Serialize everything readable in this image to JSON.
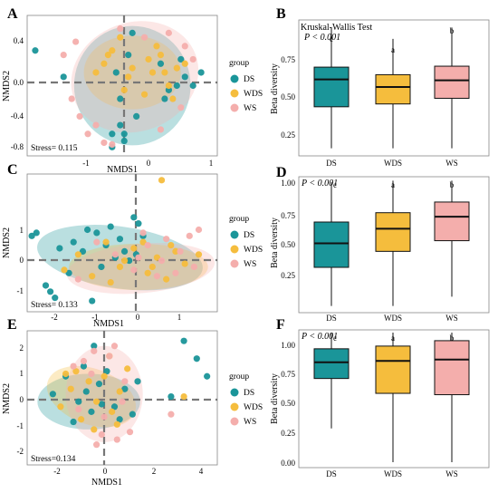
{
  "colors": {
    "DS": "#1a9599",
    "WDS": "#f5bd3d",
    "WS": "#f4aeac"
  },
  "legend": {
    "title": "group",
    "items": [
      "DS",
      "WDS",
      "WS"
    ]
  },
  "chart_data": [
    {
      "panel": "A",
      "type": "scatter",
      "xlabel": "NMDS1",
      "ylabel": "NMDS2",
      "stress": "Stress= 0.115",
      "xlim": [
        -1.35,
        1.0
      ],
      "ylim": [
        -0.85,
        0.75
      ],
      "xticks": [
        "-1",
        "0",
        "1"
      ],
      "xtick_values": [
        -1,
        0,
        1
      ],
      "yticks": [
        "0.4",
        "0.0",
        "-0.4",
        "-0.8"
      ],
      "ytick_values": [
        0.4,
        0.0,
        -0.4,
        -0.8
      ],
      "ellipses": [
        {
          "group": "DS",
          "cx": -0.05,
          "cy": -0.05,
          "rx": 0.72,
          "ry": 0.68,
          "angle": 0
        },
        {
          "group": "WDS",
          "cx": -0.05,
          "cy": 0.1,
          "rx": 0.6,
          "ry": 0.42,
          "angle": 0
        },
        {
          "group": "WS",
          "cx": -0.02,
          "cy": 0.05,
          "rx": 0.8,
          "ry": 0.62,
          "angle": -20
        }
      ],
      "series": [
        {
          "name": "DS",
          "x": [
            -1.25,
            -0.9,
            0.8,
            0.6,
            0.5,
            -0.2,
            -0.15,
            -0.3,
            0.4,
            0.3,
            -0.1,
            -0.2,
            0.0,
            -0.25,
            0.55,
            0.7,
            0.35,
            -0.15,
            -0.05,
            -0.3
          ],
          "y": [
            0.35,
            0.05,
            0.1,
            0.05,
            -0.05,
            -0.5,
            -0.6,
            -0.75,
            -0.1,
            0.2,
            0.3,
            -0.2,
            -0.4,
            0.1,
            0.25,
            -0.05,
            -0.2,
            -0.68,
            0.55,
            -0.6
          ]
        },
        {
          "name": "WDS",
          "x": [
            -0.4,
            -0.3,
            -0.2,
            -0.1,
            0.2,
            0.3,
            0.4,
            0.5,
            0.6,
            -0.5,
            0.1,
            -0.15,
            0.25,
            0.35,
            -0.35,
            0.45,
            0.15,
            -0.05
          ],
          "y": [
            0.2,
            0.35,
            0.5,
            0.05,
            0.1,
            0.3,
            -0.05,
            0.15,
            0.2,
            0.1,
            -0.15,
            -0.1,
            0.4,
            0.1,
            0.3,
            -0.2,
            0.25,
            0.15
          ]
        },
        {
          "name": "WS",
          "x": [
            -0.75,
            -0.9,
            -0.4,
            -0.6,
            0.1,
            0.4,
            0.6,
            -0.7,
            -0.5,
            0.3,
            0.7,
            -0.2,
            -0.8,
            0.55,
            -0.3
          ],
          "y": [
            0.45,
            0.3,
            -0.7,
            -0.6,
            0.5,
            0.55,
            0.4,
            -0.4,
            -0.5,
            -0.55,
            0.25,
            0.6,
            -0.2,
            -0.3,
            -0.72
          ]
        }
      ]
    },
    {
      "panel": "B",
      "type": "box",
      "ylabel": "Beta diversity",
      "test": "Kruskal-Wallis Test",
      "pvalue": "P < 0.001",
      "categories": [
        "DS",
        "WDS",
        "WS"
      ],
      "letters": [
        "c",
        "a",
        "b"
      ],
      "ylim": [
        0.14,
        0.86
      ],
      "yticks": [
        "0.75",
        "0.50",
        "0.25"
      ],
      "ytick_values": [
        0.75,
        0.5,
        0.25
      ],
      "boxes": [
        {
          "group": "DS",
          "min": 0.18,
          "q1": 0.4,
          "median": 0.545,
          "q3": 0.61,
          "max": 0.82
        },
        {
          "group": "WDS",
          "min": 0.18,
          "q1": 0.415,
          "median": 0.505,
          "q3": 0.57,
          "max": 0.76
        },
        {
          "group": "WS",
          "min": 0.18,
          "q1": 0.445,
          "median": 0.54,
          "q3": 0.615,
          "max": 0.82
        }
      ]
    },
    {
      "panel": "C",
      "type": "scatter",
      "xlabel": "NMDS1",
      "ylabel": "NMDS2",
      "stress": "Stress= 0.133",
      "xlim": [
        -2.3,
        1.8
      ],
      "ylim": [
        -1.65,
        2.8
      ],
      "xticks": [
        "-2",
        "-1",
        "0",
        "1"
      ],
      "xtick_values": [
        -2,
        -1,
        0,
        1
      ],
      "yticks": [
        "1",
        "0",
        "-1"
      ],
      "ytick_values": [
        1,
        0,
        -1
      ],
      "ellipses": [
        {
          "group": "DS",
          "cx": -0.3,
          "cy": 0.1,
          "rx": 1.8,
          "ry": 1.0,
          "angle": 8
        },
        {
          "group": "WDS",
          "cx": 0.1,
          "cy": -0.2,
          "rx": 1.5,
          "ry": 0.75,
          "angle": 0
        },
        {
          "group": "WS",
          "cx": 0.15,
          "cy": -0.25,
          "rx": 1.6,
          "ry": 0.8,
          "angle": -5
        }
      ],
      "series": [
        {
          "name": "DS",
          "x": [
            -2.2,
            -2.1,
            -1.9,
            -1.8,
            -1.7,
            -1.3,
            -1.0,
            -0.8,
            -0.6,
            -0.5,
            -0.3,
            -0.2,
            0.0,
            0.1,
            0.2,
            -1.4,
            -0.9,
            -0.4,
            0.05,
            -1.1,
            -0.7,
            -1.6,
            -0.1
          ],
          "y": [
            0.8,
            0.9,
            -0.8,
            -1.0,
            -1.2,
            0.6,
            1.0,
            0.9,
            0.5,
            1.1,
            0.7,
            0.3,
            1.4,
            1.2,
            0.8,
            -0.4,
            -1.3,
            0.1,
            0.2,
            0.3,
            -0.2,
            0.4,
            0.0
          ]
        },
        {
          "name": "WDS",
          "x": [
            -1.5,
            -1.2,
            -0.9,
            -0.6,
            -0.3,
            0.0,
            0.3,
            0.5,
            0.7,
            0.9,
            1.1,
            -0.5,
            0.2,
            0.6,
            -0.2,
            0.4,
            1.4,
            0.8
          ],
          "y": [
            -0.3,
            0.2,
            -0.5,
            0.6,
            -0.2,
            0.4,
            -0.4,
            0.1,
            -0.6,
            0.3,
            -0.1,
            -0.7,
            0.6,
            2.6,
            0.0,
            -0.2,
            0.2,
            0.5
          ]
        },
        {
          "name": "WS",
          "x": [
            -0.4,
            0.0,
            0.3,
            0.6,
            0.9,
            1.2,
            1.4,
            1.0,
            0.5,
            0.2,
            -0.8,
            1.3,
            0.7,
            -1.2,
            0.1
          ],
          "y": [
            0.2,
            -0.3,
            0.5,
            0.0,
            -0.4,
            0.8,
            1.0,
            0.3,
            -0.5,
            0.9,
            0.6,
            -0.2,
            0.7,
            -0.6,
            0.1
          ]
        }
      ]
    },
    {
      "panel": "D",
      "type": "box",
      "ylabel": "Beta diversity",
      "pvalue": "P < 0.001",
      "categories": [
        "DS",
        "WDS",
        "WS"
      ],
      "letters": [
        "c",
        "a",
        "b"
      ],
      "ylim": [
        0.0,
        1.02
      ],
      "yticks": [
        "1.00",
        "0.75",
        "0.50",
        "0.25"
      ],
      "ytick_values": [
        1.0,
        0.75,
        0.5,
        0.25
      ],
      "boxes": [
        {
          "group": "DS",
          "min": 0.05,
          "q1": 0.34,
          "median": 0.52,
          "q3": 0.68,
          "max": 0.98
        },
        {
          "group": "WDS",
          "min": 0.05,
          "q1": 0.46,
          "median": 0.63,
          "q3": 0.75,
          "max": 0.99
        },
        {
          "group": "WS",
          "min": 0.12,
          "q1": 0.54,
          "median": 0.72,
          "q3": 0.83,
          "max": 0.99
        }
      ]
    },
    {
      "panel": "E",
      "type": "scatter",
      "xlabel": "NMDS1",
      "ylabel": "NMDS2",
      "stress": "Stress=0.134",
      "xlim": [
        -2.8,
        4.6
      ],
      "ylim": [
        -2.7,
        2.6
      ],
      "xticks": [
        "-2",
        "0",
        "2",
        "4"
      ],
      "xtick_values": [
        -2,
        0,
        2,
        4
      ],
      "yticks": [
        "2",
        "1",
        "0",
        "-1",
        "-2"
      ],
      "ytick_values": [
        2,
        1,
        0,
        -1,
        -2
      ],
      "ellipses": [
        {
          "group": "DS",
          "cx": -0.4,
          "cy": -0.2,
          "rx": 2.0,
          "ry": 1.1,
          "angle": 0
        },
        {
          "group": "WDS",
          "cx": -0.3,
          "cy": 0.0,
          "rx": 1.8,
          "ry": 1.1,
          "angle": 20
        },
        {
          "group": "WS",
          "cx": 0.2,
          "cy": 0.1,
          "rx": 1.5,
          "ry": 1.9,
          "angle": 0
        }
      ],
      "series": [
        {
          "name": "DS",
          "x": [
            -1.8,
            -1.3,
            -0.8,
            -0.6,
            -0.3,
            0.0,
            0.3,
            0.6,
            1.0,
            1.3,
            3.3,
            3.8,
            4.2,
            2.8,
            -1.0,
            -0.2,
            0.8,
            -0.5,
            0.1,
            1.5
          ],
          "y": [
            0.1,
            0.8,
            -0.2,
            1.2,
            -0.6,
            0.5,
            1.0,
            -0.4,
            0.3,
            -0.7,
            2.2,
            1.5,
            0.8,
            0.0,
            -1.0,
            2.0,
            -0.9,
            0.2,
            -0.3,
            0.6
          ]
        },
        {
          "name": "WDS",
          "x": [
            -1.5,
            -1.1,
            -0.7,
            -0.4,
            -0.1,
            0.2,
            0.5,
            0.8,
            1.1,
            -0.9,
            -0.2,
            0.4,
            -1.3,
            0.7,
            3.3
          ],
          "y": [
            -0.4,
            0.3,
            -0.9,
            0.6,
            -0.2,
            0.8,
            -0.6,
            0.2,
            1.1,
            1.0,
            -1.3,
            1.6,
            0.9,
            -1.1,
            0.0
          ]
        },
        {
          "name": "WS",
          "x": [
            -0.6,
            -0.2,
            0.1,
            0.4,
            0.7,
            1.0,
            -0.8,
            0.2,
            0.6,
            -0.3,
            1.2,
            2.8,
            -1.0,
            0.9,
            -0.1
          ],
          "y": [
            1.4,
            1.8,
            -1.5,
            1.6,
            -1.7,
            0.6,
            -0.5,
            -0.8,
            2.0,
            0.9,
            -1.4,
            -0.7,
            1.2,
            -0.2,
            -1.9
          ]
        }
      ]
    },
    {
      "panel": "F",
      "type": "box",
      "ylabel": "Beta diversity",
      "pvalue": "P < 0.001",
      "categories": [
        "DS",
        "WDS",
        "WS"
      ],
      "letters": [
        "c",
        "a",
        "b"
      ],
      "ylim": [
        0.0,
        1.02
      ],
      "yticks": [
        "1.00",
        "0.75",
        "0.50",
        "0.25",
        "0.00"
      ],
      "ytick_values": [
        1.0,
        0.75,
        0.5,
        0.25,
        0.0
      ],
      "boxes": [
        {
          "group": "DS",
          "min": 0.29,
          "q1": 0.66,
          "median": 0.78,
          "q3": 0.88,
          "max": 1.0
        },
        {
          "group": "WDS",
          "min": 0.04,
          "q1": 0.55,
          "median": 0.79,
          "q3": 0.9,
          "max": 1.0
        },
        {
          "group": "WS",
          "min": 0.04,
          "q1": 0.54,
          "median": 0.8,
          "q3": 0.94,
          "max": 1.0
        }
      ]
    }
  ]
}
